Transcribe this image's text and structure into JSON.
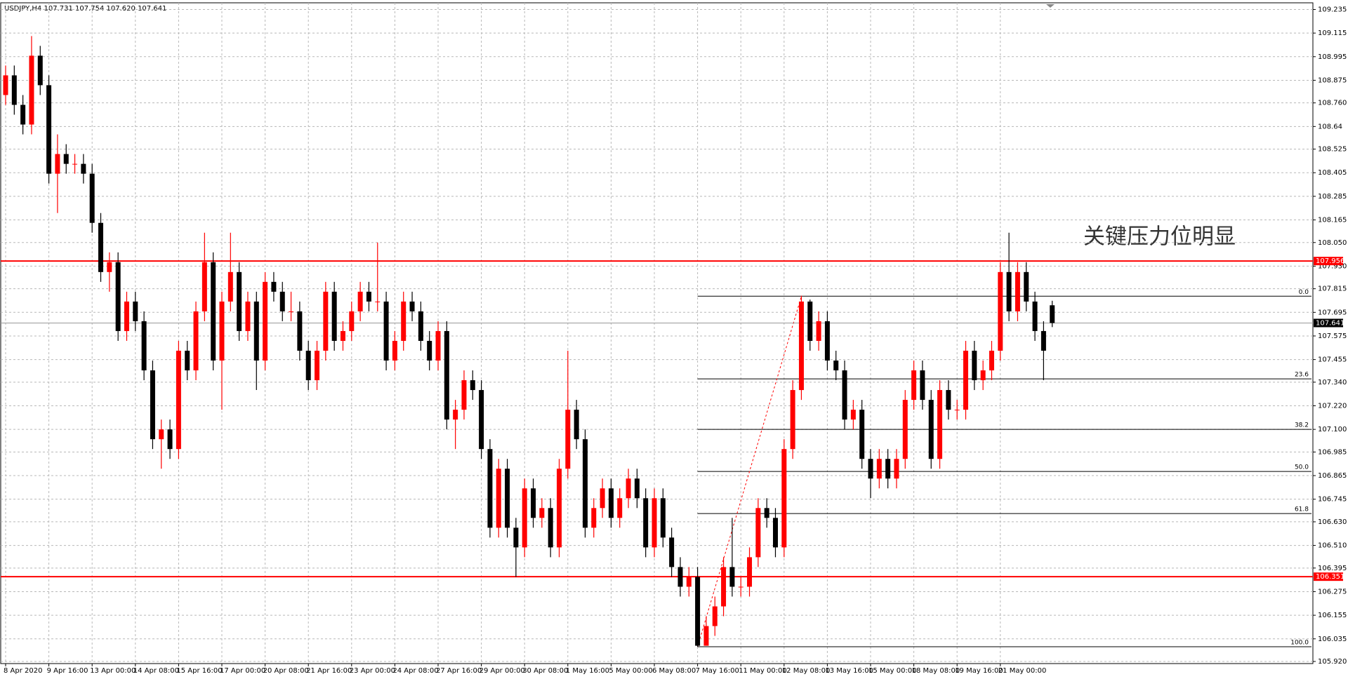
{
  "chart_data": {
    "type": "candlestick",
    "title": "USDJPY,H4  107.731 107.754 107.620 107.641",
    "annotation": "关键压力位明显",
    "up_color": "#ff0000",
    "down_color": "#000000",
    "ylim": [
      105.92,
      109.235
    ],
    "yticks": [
      {
        "value": 105.92,
        "label": "105.920"
      },
      106.035,
      106.155,
      106.275,
      106.395,
      {
        "value": 106.51,
        "label": "106.510"
      },
      {
        "value": 106.63,
        "label": "106.630"
      },
      106.745,
      106.865,
      106.985,
      {
        "value": 107.1,
        "label": "107.100"
      },
      {
        "value": 107.22,
        "label": "107.220"
      },
      {
        "value": 107.34,
        "label": "107.340"
      },
      107.455,
      107.575,
      107.695,
      107.815,
      {
        "value": 107.93,
        "label": "107.930"
      },
      {
        "value": 108.05,
        "label": "108.050"
      },
      108.165,
      108.285,
      108.405,
      108.525,
      108.64,
      {
        "value": 108.76,
        "label": "108.760"
      },
      108.875,
      108.995,
      109.115,
      109.235
    ],
    "grid": true,
    "hlines": [
      {
        "value": 107.956,
        "color": "#ff0000"
      },
      {
        "value": 106.351,
        "color": "#ff0000"
      }
    ],
    "current_price": 107.641,
    "fib": {
      "color": "#000000",
      "trend_color": "#ff0000",
      "levels": [
        {
          "label": "0.0",
          "price": 107.777
        },
        {
          "label": "23.6",
          "price": 107.357
        },
        {
          "label": "38.2",
          "price": 107.1
        },
        {
          "label": "50.0",
          "price": 106.886
        },
        {
          "label": "61.8",
          "price": 106.672
        },
        {
          "label": "100.0",
          "price": 105.995
        }
      ]
    },
    "categories": [
      "8 Apr 2020",
      null,
      null,
      null,
      null,
      "9 Apr 16:00",
      null,
      null,
      null,
      null,
      "13 Apr 00:00",
      null,
      null,
      null,
      null,
      "14 Apr 08:00",
      null,
      null,
      null,
      null,
      "15 Apr 16:00",
      null,
      null,
      null,
      null,
      "17 Apr 00:00",
      null,
      null,
      null,
      null,
      "20 Apr 08:00",
      null,
      null,
      null,
      null,
      "21 Apr 16:00",
      null,
      null,
      null,
      null,
      "23 Apr 00:00",
      null,
      null,
      null,
      null,
      "24 Apr 08:00",
      null,
      null,
      null,
      null,
      "27 Apr 16:00",
      null,
      null,
      null,
      null,
      "29 Apr 00:00",
      null,
      null,
      null,
      null,
      "30 Apr 08:00",
      null,
      null,
      null,
      null,
      "1 May 16:00",
      null,
      null,
      null,
      null,
      "5 May 00:00",
      null,
      null,
      null,
      null,
      "6 May 08:00",
      null,
      null,
      null,
      null,
      "7 May 16:00",
      null,
      null,
      null,
      null,
      "11 May 00:00",
      null,
      null,
      null,
      null,
      "12 May 08:00",
      null,
      null,
      null,
      null,
      "13 May 16:00",
      null,
      null,
      null,
      null,
      "15 May 00:00",
      null,
      null,
      null,
      null,
      "18 May 08:00",
      null,
      null,
      null,
      null,
      "19 May 16:00",
      null,
      null,
      null,
      null,
      "21 May 00:00",
      null,
      null,
      null,
      null,
      null,
      null
    ],
    "candles": [
      [
        108.8,
        108.95,
        108.75,
        108.9
      ],
      [
        108.9,
        108.95,
        108.7,
        108.75
      ],
      [
        108.75,
        108.8,
        108.6,
        108.65
      ],
      [
        108.65,
        109.1,
        108.6,
        109.0
      ],
      [
        109.0,
        109.05,
        108.8,
        108.85
      ],
      [
        108.85,
        108.9,
        108.35,
        108.4
      ],
      [
        108.4,
        108.6,
        108.2,
        108.5
      ],
      [
        108.5,
        108.55,
        108.4,
        108.45
      ],
      [
        108.45,
        108.5,
        108.4,
        108.45
      ],
      [
        108.45,
        108.5,
        108.35,
        108.4
      ],
      [
        108.4,
        108.45,
        108.1,
        108.15
      ],
      [
        108.15,
        108.2,
        107.85,
        107.9
      ],
      [
        107.9,
        108.0,
        107.8,
        107.95
      ],
      [
        107.95,
        108.0,
        107.55,
        107.6
      ],
      [
        107.6,
        107.8,
        107.55,
        107.75
      ],
      [
        107.75,
        107.8,
        107.6,
        107.65
      ],
      [
        107.65,
        107.7,
        107.35,
        107.4
      ],
      [
        107.4,
        107.45,
        107.0,
        107.05
      ],
      [
        107.05,
        107.15,
        106.9,
        107.1
      ],
      [
        107.1,
        107.15,
        106.95,
        107.0
      ],
      [
        107.0,
        107.55,
        106.95,
        107.5
      ],
      [
        107.5,
        107.55,
        107.35,
        107.4
      ],
      [
        107.4,
        107.75,
        107.35,
        107.7
      ],
      [
        107.7,
        108.1,
        107.65,
        107.95
      ],
      [
        107.95,
        108.0,
        107.4,
        107.45
      ],
      [
        107.45,
        107.8,
        107.2,
        107.75
      ],
      [
        107.75,
        108.1,
        107.7,
        107.9
      ],
      [
        107.9,
        107.95,
        107.55,
        107.6
      ],
      [
        107.6,
        107.8,
        107.55,
        107.75
      ],
      [
        107.75,
        107.8,
        107.3,
        107.45
      ],
      [
        107.45,
        107.9,
        107.4,
        107.85
      ],
      [
        107.85,
        107.9,
        107.75,
        107.8
      ],
      [
        107.8,
        107.85,
        107.65,
        107.7
      ],
      [
        107.7,
        107.8,
        107.65,
        107.7
      ],
      [
        107.7,
        107.75,
        107.45,
        107.5
      ],
      [
        107.5,
        107.55,
        107.3,
        107.35
      ],
      [
        107.35,
        107.55,
        107.3,
        107.5
      ],
      [
        107.5,
        107.85,
        107.45,
        107.8
      ],
      [
        107.8,
        107.85,
        107.5,
        107.55
      ],
      [
        107.55,
        107.65,
        107.5,
        107.6
      ],
      [
        107.6,
        107.75,
        107.55,
        107.7
      ],
      [
        107.7,
        107.85,
        107.65,
        107.8
      ],
      [
        107.8,
        107.85,
        107.7,
        107.75
      ],
      [
        107.75,
        108.05,
        107.7,
        107.75
      ],
      [
        107.75,
        107.8,
        107.4,
        107.45
      ],
      [
        107.45,
        107.6,
        107.4,
        107.55
      ],
      [
        107.55,
        107.8,
        107.5,
        107.75
      ],
      [
        107.75,
        107.8,
        107.65,
        107.7
      ],
      [
        107.7,
        107.75,
        107.5,
        107.55
      ],
      [
        107.55,
        107.6,
        107.4,
        107.45
      ],
      [
        107.45,
        107.65,
        107.4,
        107.6
      ],
      [
        107.6,
        107.65,
        107.1,
        107.15
      ],
      [
        107.15,
        107.25,
        107.0,
        107.2
      ],
      [
        107.2,
        107.4,
        107.15,
        107.35
      ],
      [
        107.35,
        107.4,
        107.25,
        107.3
      ],
      [
        107.3,
        107.35,
        106.95,
        107.0
      ],
      [
        107.0,
        107.05,
        106.55,
        106.6
      ],
      [
        106.6,
        106.95,
        106.55,
        106.9
      ],
      [
        106.9,
        106.95,
        106.55,
        106.6
      ],
      [
        106.6,
        106.65,
        106.35,
        106.5
      ],
      [
        106.5,
        106.85,
        106.45,
        106.8
      ],
      [
        106.8,
        106.85,
        106.6,
        106.65
      ],
      [
        106.65,
        106.75,
        106.6,
        106.7
      ],
      [
        106.7,
        106.75,
        106.45,
        106.5
      ],
      [
        106.5,
        106.95,
        106.45,
        106.9
      ],
      [
        106.9,
        107.5,
        106.85,
        107.2
      ],
      [
        107.2,
        107.25,
        107.0,
        107.05
      ],
      [
        107.05,
        107.1,
        106.55,
        106.6
      ],
      [
        106.6,
        106.75,
        106.55,
        106.7
      ],
      [
        106.7,
        106.85,
        106.65,
        106.8
      ],
      [
        106.8,
        106.85,
        106.6,
        106.65
      ],
      [
        106.65,
        106.8,
        106.6,
        106.75
      ],
      [
        106.75,
        106.9,
        106.7,
        106.85
      ],
      [
        106.85,
        106.9,
        106.7,
        106.75
      ],
      [
        106.75,
        106.8,
        106.45,
        106.5
      ],
      [
        106.5,
        106.8,
        106.45,
        106.75
      ],
      [
        106.75,
        106.8,
        106.5,
        106.55
      ],
      [
        106.55,
        106.6,
        106.35,
        106.4
      ],
      [
        106.4,
        106.45,
        106.25,
        106.3
      ],
      [
        106.3,
        106.4,
        106.25,
        106.35
      ],
      [
        106.35,
        106.4,
        105.995,
        106.0
      ],
      [
        106.0,
        106.15,
        106.0,
        106.1
      ],
      [
        106.1,
        106.25,
        106.05,
        106.2
      ],
      [
        106.2,
        106.45,
        106.15,
        106.4
      ],
      [
        106.4,
        106.65,
        106.25,
        106.3
      ],
      [
        106.3,
        106.35,
        106.25,
        106.3
      ],
      [
        106.3,
        106.5,
        106.25,
        106.45
      ],
      [
        106.45,
        106.75,
        106.4,
        106.7
      ],
      [
        106.7,
        106.75,
        106.6,
        106.65
      ],
      [
        106.65,
        106.7,
        106.45,
        106.5
      ],
      [
        106.5,
        107.05,
        106.45,
        107.0
      ],
      [
        107.0,
        107.35,
        106.95,
        107.3
      ],
      [
        107.3,
        107.78,
        107.25,
        107.75
      ],
      [
        107.75,
        107.76,
        107.5,
        107.55
      ],
      [
        107.55,
        107.7,
        107.5,
        107.65
      ],
      [
        107.65,
        107.7,
        107.4,
        107.45
      ],
      [
        107.45,
        107.5,
        107.35,
        107.4
      ],
      [
        107.4,
        107.45,
        107.1,
        107.15
      ],
      [
        107.15,
        107.25,
        107.1,
        107.2
      ],
      [
        107.2,
        107.25,
        106.9,
        106.95
      ],
      [
        106.95,
        107.0,
        106.75,
        106.85
      ],
      [
        106.85,
        107.0,
        106.8,
        106.95
      ],
      [
        106.95,
        107.0,
        106.8,
        106.85
      ],
      [
        106.85,
        107.0,
        106.8,
        106.95
      ],
      [
        106.95,
        107.3,
        106.9,
        107.25
      ],
      [
        107.25,
        107.45,
        107.2,
        107.4
      ],
      [
        107.4,
        107.45,
        107.2,
        107.25
      ],
      [
        107.25,
        107.3,
        106.9,
        106.95
      ],
      [
        106.95,
        107.35,
        106.9,
        107.3
      ],
      [
        107.3,
        107.35,
        107.15,
        107.2
      ],
      [
        107.2,
        107.25,
        107.15,
        107.2
      ],
      [
        107.2,
        107.55,
        107.15,
        107.5
      ],
      [
        107.5,
        107.55,
        107.3,
        107.35
      ],
      [
        107.35,
        107.45,
        107.3,
        107.4
      ],
      [
        107.4,
        107.55,
        107.35,
        107.5
      ],
      [
        107.5,
        107.95,
        107.45,
        107.9
      ],
      [
        107.9,
        108.1,
        107.65,
        107.7
      ],
      [
        107.7,
        107.95,
        107.65,
        107.9
      ],
      [
        107.9,
        107.95,
        107.7,
        107.75
      ],
      [
        107.75,
        107.8,
        107.55,
        107.6
      ],
      [
        107.6,
        107.65,
        107.35,
        107.5
      ],
      [
        107.731,
        107.754,
        107.62,
        107.641
      ]
    ]
  }
}
